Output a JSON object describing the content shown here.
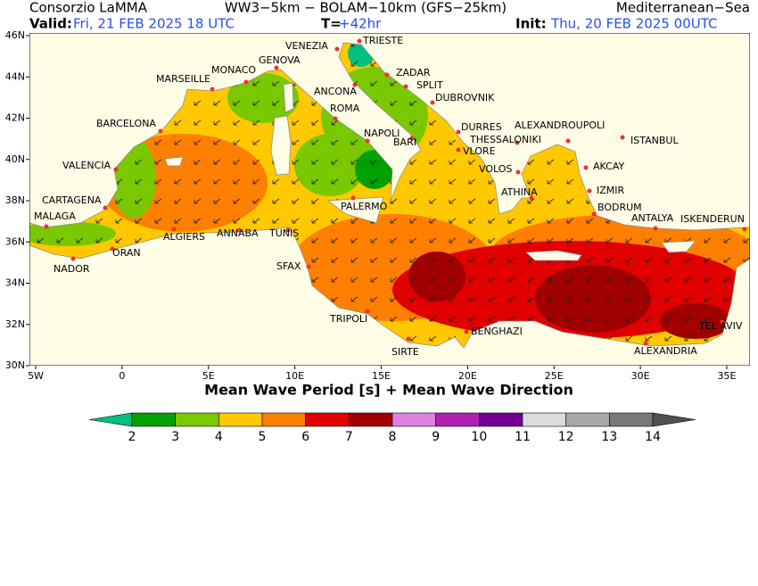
{
  "header": {
    "org": "Consorzio LaMMA",
    "model": "WW3−5km − BOLAM−10km (GFS−25km)",
    "region": "Mediterranean−Sea",
    "valid_label": "Valid:",
    "valid": "Fri, 21 FEB 2025  18 UTC",
    "lead_label": "T=",
    "lead": "+42hr",
    "init_label": "Init:",
    "init": "Thu, 20 FEB 2025 00UTC"
  },
  "map": {
    "title": "Mean Wave Period [s] + Mean Wave Direction",
    "xticks": [
      "5W",
      "0",
      "5E",
      "10E",
      "15E",
      "20E",
      "25E",
      "30E",
      "35E"
    ],
    "yticks": [
      "30N",
      "32N",
      "34N",
      "36N",
      "38N",
      "40N",
      "42N",
      "44N",
      "46N"
    ],
    "cities": [
      "VENEZIA",
      "TRIESTE",
      "MONACO",
      "GENOVA",
      "MARSEILLE",
      "ZADAR",
      "SPLIT",
      "ANCONA",
      "DUBROVNIK",
      "ROMA",
      "BARCELONA",
      "NAPOLI",
      "DURRES",
      "ALEXANDROUPOLI",
      "THESSALONIKI",
      "BARI",
      "ISTANBUL",
      "VLORE",
      "VALENCIA",
      "VOLOS",
      "AKCAY",
      "IZMIR",
      "ATHINA",
      "PALERMO",
      "CARTAGENA",
      "BODRUM",
      "MALAGA",
      "ANTALYA",
      "ISKENDERUN",
      "ANNABA",
      "TUNIS",
      "ALGIERS",
      "ORAN",
      "NADOR",
      "SFAX",
      "TRIPOLI",
      "BENGHAZI",
      "TEL AVIV",
      "SIRTE",
      "ALEXANDRIA"
    ]
  },
  "colorbar": {
    "labels": [
      2,
      3,
      4,
      5,
      6,
      7,
      8,
      9,
      10,
      11,
      12,
      13,
      14
    ],
    "colors": [
      "#00c080",
      "#00a000",
      "#7ac800",
      "#ffc800",
      "#ff7f00",
      "#e00000",
      "#a00000",
      "#e080e0",
      "#b020b0",
      "#700090",
      "#dcdcdc",
      "#a8a8a8",
      "#787878",
      "#505050"
    ]
  }
}
